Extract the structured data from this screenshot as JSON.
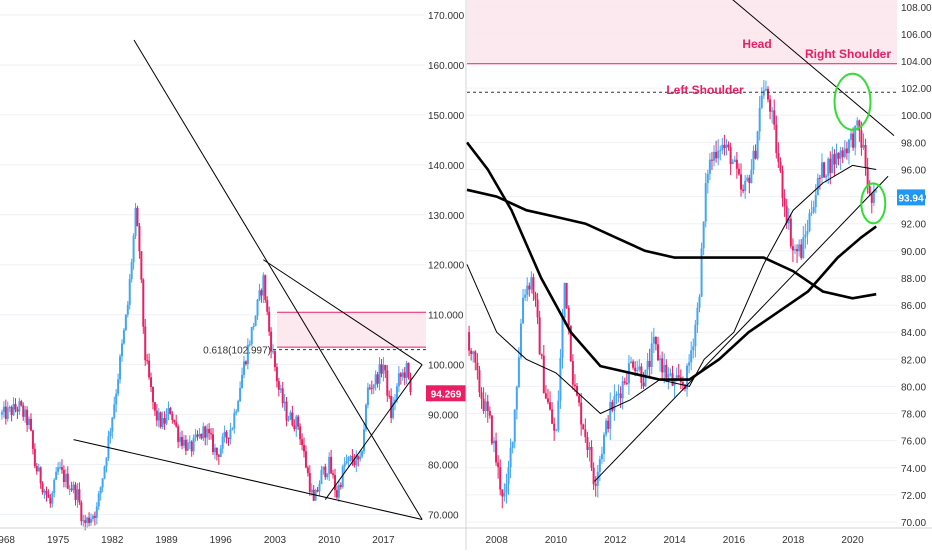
{
  "colors": {
    "up": "#42a5f5",
    "down": "#e91e63",
    "zone_fill": "#fce4ec",
    "zone_line": "#e91e63",
    "annotation": "#e91e63",
    "circle": "#33dd33",
    "trend": "#000000",
    "price_tag_left": "#e91e63",
    "price_tag_right": "#2196f3",
    "axis_text": "#333333",
    "grid": "#eef1f5"
  },
  "chart_data": [
    {
      "type": "candlestick",
      "title": "",
      "timeframe": "monthly",
      "x_ticks": [
        "1968",
        "1975",
        "1982",
        "1989",
        "1996",
        "2003",
        "2010",
        "2017"
      ],
      "y_ticks": [
        "70.000",
        "80.000",
        "90.000",
        "100.000",
        "110.000",
        "120.000",
        "130.000",
        "140.000",
        "150.000",
        "160.000",
        "170.000"
      ],
      "ylim": [
        68.5,
        172
      ],
      "xlim": [
        1967.5,
        2022.5
      ],
      "grid": true,
      "last_price_label": "94.269",
      "last_price": 94.269,
      "fib_label": "0.618(102.997)",
      "fib_level": 102.997,
      "resistance_zone": [
        103.5,
        110.5
      ],
      "price_path": [
        [
          1968.0,
          90.0
        ],
        [
          1970.0,
          91.5
        ],
        [
          1971.3,
          88.0
        ],
        [
          1972.0,
          80.0
        ],
        [
          1974.0,
          72.0
        ],
        [
          1975.0,
          79.0
        ],
        [
          1977.5,
          74.0
        ],
        [
          1978.3,
          68.0
        ],
        [
          1980.0,
          71.0
        ],
        [
          1981.0,
          80.0
        ],
        [
          1982.5,
          95.0
        ],
        [
          1984.0,
          112.0
        ],
        [
          1985.0,
          130.0
        ],
        [
          1985.5,
          123.0
        ],
        [
          1986.2,
          102.0
        ],
        [
          1987.5,
          90.0
        ],
        [
          1988.5,
          88.0
        ],
        [
          1989.5,
          91.0
        ],
        [
          1990.5,
          86.0
        ],
        [
          1992.0,
          83.0
        ],
        [
          1994.0,
          87.0
        ],
        [
          1995.5,
          82.0
        ],
        [
          1997.5,
          88.0
        ],
        [
          1999.0,
          100.0
        ],
        [
          2000.5,
          110.0
        ],
        [
          2001.5,
          117.0
        ],
        [
          2002.3,
          106.0
        ],
        [
          2003.5,
          95.0
        ],
        [
          2004.5,
          90.0
        ],
        [
          2006.0,
          88.0
        ],
        [
          2008.0,
          72.0
        ],
        [
          2009.0,
          78.0
        ],
        [
          2010.0,
          80.0
        ],
        [
          2011.0,
          74.0
        ],
        [
          2012.0,
          80.0
        ],
        [
          2013.0,
          81.0
        ],
        [
          2014.0,
          80.0
        ],
        [
          2015.0,
          95.0
        ],
        [
          2016.0,
          97.0
        ],
        [
          2017.0,
          100.0
        ],
        [
          2018.0,
          90.0
        ],
        [
          2019.0,
          97.0
        ],
        [
          2020.0,
          99.0
        ],
        [
          2020.5,
          94.269
        ]
      ],
      "trend_lines": [
        [
          [
            1984.8,
            165.0
          ],
          [
            2022.0,
            69.0
          ]
        ],
        [
          [
            2001.5,
            121.0
          ],
          [
            2022.0,
            100.0
          ]
        ],
        [
          [
            1977.0,
            85.0
          ],
          [
            2022.0,
            69.0
          ]
        ],
        [
          [
            2009.5,
            73.0
          ],
          [
            2022.0,
            100.0
          ]
        ]
      ],
      "x_axis_labels_text": [
        "1968",
        "1975",
        "1982",
        "1989",
        "1996",
        "2003",
        "2010",
        "2017"
      ]
    },
    {
      "type": "candlestick",
      "title": "",
      "timeframe": "weekly",
      "x_ticks": [
        "2008",
        "2010",
        "2012",
        "2014",
        "2016",
        "2018",
        "2020"
      ],
      "y_ticks": [
        "70.000",
        "72.000",
        "74.000",
        "76.000",
        "78.000",
        "80.000",
        "82.000",
        "84.000",
        "86.000",
        "88.000",
        "90.000",
        "92.000",
        "94.000",
        "96.000",
        "98.000",
        "100.000",
        "102.000",
        "104.000",
        "106.000",
        "108.000"
      ],
      "y_tick_labels": [
        "70.00",
        "72.00",
        "74.00",
        "76.00",
        "78.00",
        "80.00",
        "82.00",
        "84.00",
        "86.00",
        "88.00",
        "90.00",
        "92.00",
        "94.00",
        "96.00",
        "98.00",
        "100.00",
        "102.00",
        "104.00",
        "106.00",
        "108.00"
      ],
      "ylim": [
        70,
        108.5
      ],
      "xlim": [
        2007.0,
        2021.5
      ],
      "grid": true,
      "last_price_label": "93.94",
      "last_price": 93.94,
      "resistance_zone": [
        103.8,
        108.5
      ],
      "neckline": 101.7,
      "annotations": [
        "Head",
        "Right Shoulder",
        "Left Shoulder"
      ],
      "price_path": [
        [
          2007.0,
          84.0
        ],
        [
          2007.4,
          80.0
        ],
        [
          2007.8,
          77.0
        ],
        [
          2008.1,
          73.0
        ],
        [
          2008.3,
          71.5
        ],
        [
          2008.6,
          78.0
        ],
        [
          2008.9,
          87.0
        ],
        [
          2009.2,
          88.0
        ],
        [
          2009.6,
          80.0
        ],
        [
          2010.0,
          76.0
        ],
        [
          2010.3,
          88.0
        ],
        [
          2010.6,
          80.0
        ],
        [
          2011.0,
          76.5
        ],
        [
          2011.3,
          73.0
        ],
        [
          2011.5,
          75.0
        ],
        [
          2011.8,
          78.0
        ],
        [
          2012.2,
          80.0
        ],
        [
          2012.6,
          82.0
        ],
        [
          2013.0,
          80.5
        ],
        [
          2013.3,
          83.0
        ],
        [
          2013.7,
          81.0
        ],
        [
          2014.0,
          80.0
        ],
        [
          2014.4,
          80.5
        ],
        [
          2014.8,
          86.0
        ],
        [
          2015.1,
          96.0
        ],
        [
          2015.5,
          98.0
        ],
        [
          2015.9,
          97.0
        ],
        [
          2016.3,
          94.0
        ],
        [
          2016.7,
          97.0
        ],
        [
          2016.95,
          102.0
        ],
        [
          2017.2,
          101.0
        ],
        [
          2017.6,
          95.0
        ],
        [
          2018.0,
          90.0
        ],
        [
          2018.3,
          90.0
        ],
        [
          2018.7,
          94.0
        ],
        [
          2019.0,
          96.0
        ],
        [
          2019.5,
          97.0
        ],
        [
          2019.9,
          98.0
        ],
        [
          2020.2,
          99.0
        ],
        [
          2020.4,
          97.0
        ],
        [
          2020.6,
          93.5
        ],
        [
          2020.8,
          93.94
        ]
      ],
      "trend_lines": [
        [
          [
            2011.3,
            73.0
          ],
          [
            2021.2,
            95.5
          ]
        ],
        [
          [
            2011.9,
            116.0
          ],
          [
            2021.4,
            98.5
          ]
        ]
      ],
      "moving_averages": [
        {
          "width": "heavy",
          "points": [
            [
              2007.0,
              94.5
            ],
            [
              2008.0,
              94.0
            ],
            [
              2009.0,
              93.0
            ],
            [
              2010.0,
              92.5
            ],
            [
              2011.0,
              92.0
            ],
            [
              2012.0,
              91.0
            ],
            [
              2013.0,
              90.0
            ],
            [
              2014.0,
              89.5
            ],
            [
              2015.0,
              89.5
            ],
            [
              2016.0,
              89.5
            ],
            [
              2017.0,
              89.5
            ],
            [
              2018.0,
              88.5
            ],
            [
              2019.0,
              87.0
            ],
            [
              2020.0,
              86.5
            ],
            [
              2020.8,
              86.8
            ]
          ]
        },
        {
          "width": "heavy",
          "points": [
            [
              2007.0,
              98.0
            ],
            [
              2007.7,
              96.0
            ],
            [
              2008.5,
              93.0
            ],
            [
              2009.5,
              88.0
            ],
            [
              2010.5,
              84.0
            ],
            [
              2011.5,
              81.5
            ],
            [
              2012.5,
              81.0
            ],
            [
              2013.5,
              80.5
            ],
            [
              2014.5,
              80.5
            ],
            [
              2015.5,
              82.0
            ],
            [
              2016.5,
              84.0
            ],
            [
              2017.5,
              85.5
            ],
            [
              2018.5,
              87.0
            ],
            [
              2019.5,
              89.5
            ],
            [
              2020.3,
              91.0
            ],
            [
              2020.8,
              91.8
            ]
          ]
        },
        {
          "width": "light",
          "points": [
            [
              2007.0,
              89.0
            ],
            [
              2008.0,
              84.0
            ],
            [
              2009.0,
              82.0
            ],
            [
              2010.0,
              81.0
            ],
            [
              2010.5,
              80.0
            ],
            [
              2011.5,
              78.0
            ],
            [
              2012.5,
              79.0
            ],
            [
              2013.5,
              80.5
            ],
            [
              2014.5,
              80.0
            ],
            [
              2015.0,
              82.0
            ],
            [
              2016.0,
              84.0
            ],
            [
              2017.0,
              89.0
            ],
            [
              2018.0,
              93.0
            ],
            [
              2019.0,
              95.0
            ],
            [
              2020.0,
              96.3
            ],
            [
              2020.8,
              96.0
            ]
          ]
        }
      ],
      "circles": [
        [
          2020.0,
          101.0
        ],
        [
          2020.7,
          93.5
        ]
      ]
    }
  ]
}
